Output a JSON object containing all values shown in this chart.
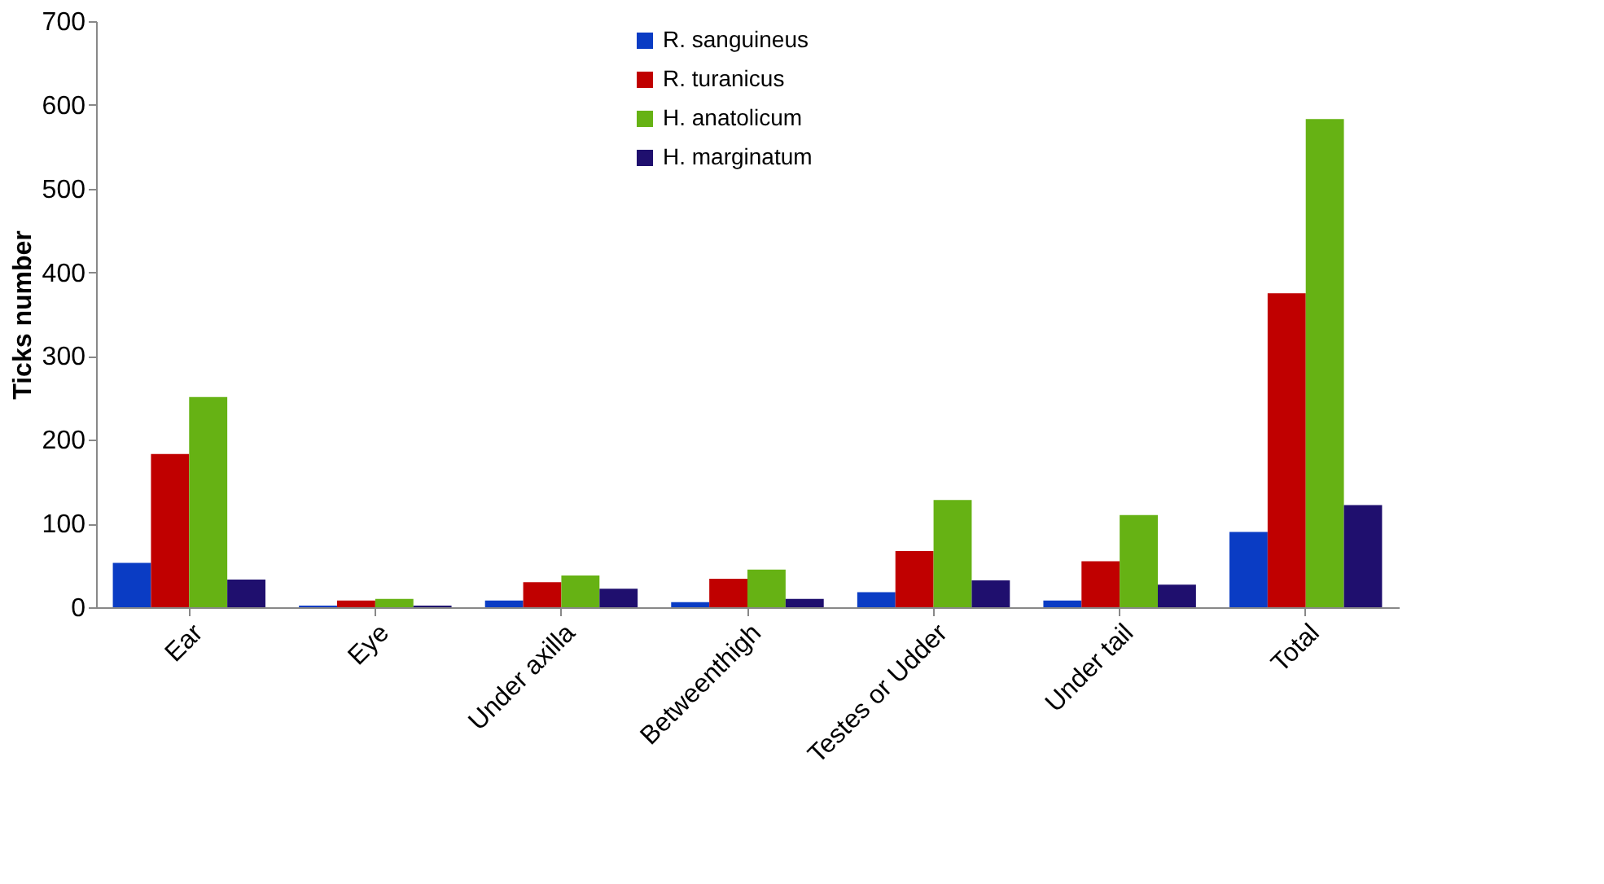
{
  "chart_data": {
    "type": "bar",
    "ylabel": "Ticks number",
    "categories": [
      "Ear",
      "Eye",
      "Under axilla",
      "Betweenthigh",
      "Testes or Udder",
      "Under    tail",
      "Total"
    ],
    "series": [
      {
        "name": "R. sanguineus",
        "color": "#0a3cc4",
        "values": [
          53,
          2,
          8,
          6,
          18,
          8,
          90
        ]
      },
      {
        "name": "R. turanicus",
        "color": "#c00000",
        "values": [
          183,
          8,
          30,
          34,
          67,
          55,
          375
        ]
      },
      {
        "name": "H. anatolicum",
        "color": "#66b214",
        "values": [
          251,
          10,
          38,
          45,
          128,
          110,
          583
        ]
      },
      {
        "name": "H. marginatum",
        "color": "#1f0f6e",
        "values": [
          33,
          2,
          22,
          10,
          32,
          27,
          122
        ]
      }
    ],
    "ylim": [
      0,
      700
    ],
    "yticks": [
      0,
      100,
      200,
      300,
      400,
      500,
      600,
      700
    ],
    "grid": false,
    "legend": "top"
  }
}
